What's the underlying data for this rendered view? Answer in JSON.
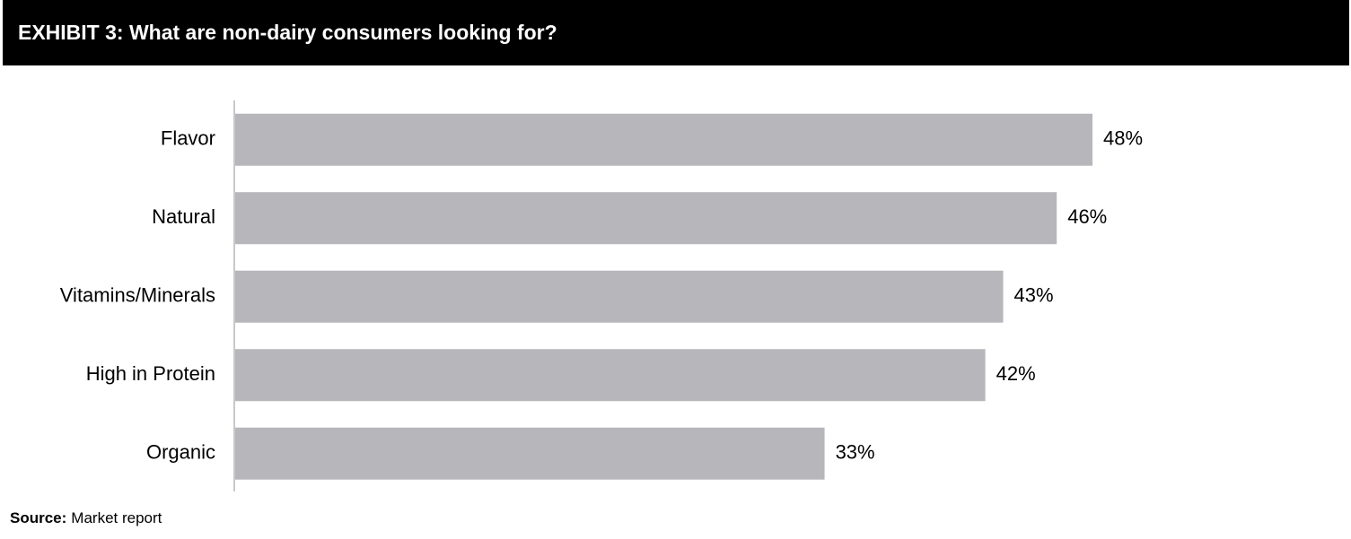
{
  "chart_data": {
    "type": "bar",
    "orientation": "horizontal",
    "title": "EXHIBIT 3: What are non-dairy consumers looking for?",
    "categories": [
      "Flavor",
      "Natural",
      "Vitamins/Minerals",
      "High in Protein",
      "Organic"
    ],
    "values": [
      48,
      46,
      43,
      42,
      33
    ],
    "value_labels": [
      "48%",
      "46%",
      "43%",
      "42%",
      "33%"
    ],
    "color": "#b7b6ba",
    "source_label": "Source:",
    "source": "Market report"
  }
}
